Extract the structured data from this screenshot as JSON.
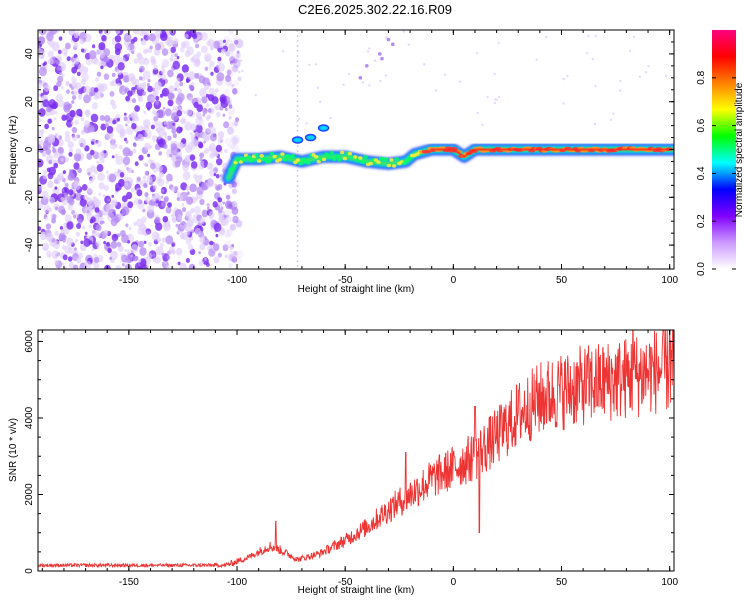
{
  "figure": {
    "title": "C2E6.2025.302.22.16.R09"
  },
  "chart_data": [
    {
      "type": "heatmap",
      "title": "C2E6.2025.302.22.16.R09",
      "xlabel": "Height of straight line (km)",
      "ylabel": "Frequency (Hz)",
      "xlim": [
        -192,
        102
      ],
      "ylim": [
        -50,
        50
      ],
      "x_ticks": [
        -150,
        -100,
        -50,
        0,
        50,
        100
      ],
      "x_tick_labels": [
        "-150",
        "-100",
        "-50",
        "0",
        "50",
        "100"
      ],
      "y_ticks": [
        -40,
        -20,
        0,
        20,
        40
      ],
      "y_tick_labels": [
        "-40",
        "-20",
        "0",
        "20",
        "40"
      ],
      "colorbar": {
        "label": "Normalized spectral amplitude",
        "range": [
          0,
          1
        ],
        "ticks": [
          0.0,
          0.2,
          0.4,
          0.6,
          0.8
        ],
        "tick_labels": [
          "0.0",
          "0.2",
          "0.4",
          "0.6",
          "0.8"
        ],
        "colormap": [
          "#ffffff",
          "#cc99ff",
          "#8000ff",
          "#0000ff",
          "#00ffff",
          "#00ff00",
          "#ffff00",
          "#ff8000",
          "#ff0000",
          "#ff0080"
        ]
      },
      "noise_region_x": [
        -192,
        -105
      ],
      "signal_track": [
        {
          "x": -104,
          "y": -12
        },
        {
          "x": -100,
          "y": -4
        },
        {
          "x": -90,
          "y": -4
        },
        {
          "x": -80,
          "y": -3
        },
        {
          "x": -70,
          "y": -5
        },
        {
          "x": -60,
          "y": -3
        },
        {
          "x": -50,
          "y": -3
        },
        {
          "x": -40,
          "y": -5
        },
        {
          "x": -30,
          "y": -6
        },
        {
          "x": -22,
          "y": -5
        },
        {
          "x": -18,
          "y": -2
        },
        {
          "x": -10,
          "y": 0
        },
        {
          "x": 0,
          "y": 0
        },
        {
          "x": 5,
          "y": -3
        },
        {
          "x": 10,
          "y": 0
        },
        {
          "x": 30,
          "y": 0
        },
        {
          "x": 60,
          "y": 0
        },
        {
          "x": 80,
          "y": 0
        },
        {
          "x": 102,
          "y": 0
        }
      ]
    },
    {
      "type": "line",
      "xlabel": "Height of straight line (km)",
      "ylabel": "SNR (10 * v/v)",
      "xlim": [
        -192,
        102
      ],
      "ylim": [
        0,
        6300
      ],
      "x_ticks": [
        -150,
        -100,
        -50,
        0,
        50,
        100
      ],
      "x_tick_labels": [
        "-150",
        "-100",
        "-50",
        "0",
        "50",
        "100"
      ],
      "y_ticks": [
        0,
        2000,
        4000,
        6000
      ],
      "y_tick_labels": [
        "0",
        "2000",
        "4000",
        "6000"
      ],
      "color": "#ee3333",
      "trend": [
        {
          "x": -192,
          "y": 150
        },
        {
          "x": -120,
          "y": 150
        },
        {
          "x": -105,
          "y": 150
        },
        {
          "x": -95,
          "y": 350
        },
        {
          "x": -85,
          "y": 650
        },
        {
          "x": -80,
          "y": 550
        },
        {
          "x": -72,
          "y": 300
        },
        {
          "x": -62,
          "y": 450
        },
        {
          "x": -50,
          "y": 800
        },
        {
          "x": -40,
          "y": 1150
        },
        {
          "x": -30,
          "y": 1600
        },
        {
          "x": -20,
          "y": 2000
        },
        {
          "x": -10,
          "y": 2400
        },
        {
          "x": 0,
          "y": 2700
        },
        {
          "x": 10,
          "y": 3000
        },
        {
          "x": 20,
          "y": 3500
        },
        {
          "x": 30,
          "y": 4100
        },
        {
          "x": 40,
          "y": 4500
        },
        {
          "x": 50,
          "y": 4700
        },
        {
          "x": 60,
          "y": 4850
        },
        {
          "x": 70,
          "y": 4950
        },
        {
          "x": 80,
          "y": 5050
        },
        {
          "x": 90,
          "y": 5200
        },
        {
          "x": 102,
          "y": 5300
        }
      ],
      "notable_points": [
        {
          "x": 10,
          "y": 4300
        },
        {
          "x": 12,
          "y": 1000
        },
        {
          "x": -22,
          "y": 3100
        },
        {
          "x": 83,
          "y": 6300
        },
        {
          "x": 100,
          "y": 6300
        },
        {
          "x": -82,
          "y": 1300
        }
      ]
    }
  ]
}
